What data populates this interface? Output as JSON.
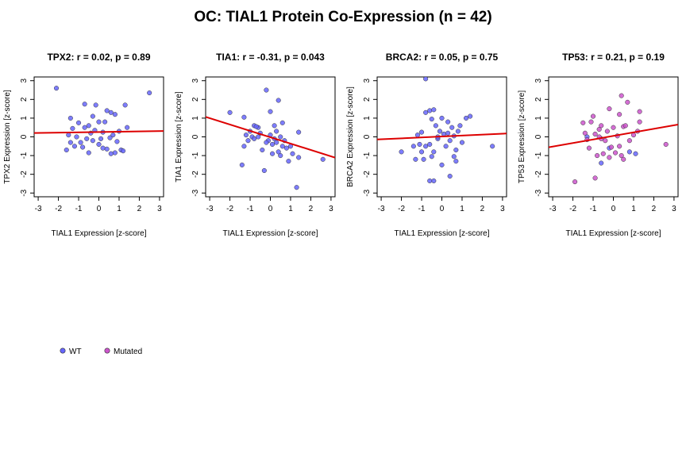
{
  "title": "OC: TIAL1 Protein Co-Expression (n = 42)",
  "colors": {
    "wt": "#6666ff",
    "mutated": "#cc55cc",
    "fit_line": "#dd0000",
    "axis": "#000000"
  },
  "legend": {
    "placement": "bottom-left",
    "items": [
      {
        "label": "WT",
        "color": "#6666ff"
      },
      {
        "label": "Mutated",
        "color": "#cc55cc"
      }
    ]
  },
  "chart_data": [
    {
      "type": "scatter",
      "title": "TPX2: r = 0.02, p = 0.89",
      "xlabel": "TIAL1 Expression [z-score]",
      "ylabel": "TPX2 Expression [z-score]",
      "xlim": [
        -3.2,
        3.2
      ],
      "ylim": [
        -3.2,
        3.2
      ],
      "xticks": [
        "-3",
        "-2",
        "-1",
        "0",
        "1",
        "2",
        "3"
      ],
      "yticks": [
        "-3",
        "-2",
        "-1",
        "0",
        "1",
        "2",
        "3"
      ],
      "fit": {
        "intercept": 0.26,
        "slope": 0.016
      },
      "series": [
        {
          "name": "WT",
          "points": [
            [
              -2.1,
              2.6
            ],
            [
              2.5,
              2.35
            ],
            [
              -0.7,
              1.75
            ],
            [
              -0.15,
              1.7
            ],
            [
              1.3,
              1.7
            ],
            [
              -1.4,
              1.0
            ],
            [
              0.4,
              1.4
            ],
            [
              0.6,
              1.3
            ],
            [
              0.8,
              1.2
            ],
            [
              -0.3,
              1.1
            ],
            [
              -1.0,
              0.75
            ],
            [
              0.3,
              0.8
            ],
            [
              0.0,
              0.8
            ],
            [
              -0.5,
              0.6
            ],
            [
              -0.7,
              0.5
            ],
            [
              -1.3,
              0.45
            ],
            [
              1.4,
              0.5
            ],
            [
              1.0,
              0.3
            ],
            [
              0.7,
              0.1
            ],
            [
              -0.2,
              0.35
            ],
            [
              0.2,
              0.25
            ],
            [
              -0.4,
              0.2
            ],
            [
              -1.5,
              0.1
            ],
            [
              -1.1,
              0.0
            ],
            [
              0.55,
              -0.05
            ],
            [
              -0.6,
              -0.1
            ],
            [
              -0.3,
              -0.2
            ],
            [
              0.1,
              -0.1
            ],
            [
              -1.4,
              -0.3
            ],
            [
              0.9,
              -0.25
            ],
            [
              -1.6,
              -0.7
            ],
            [
              -1.2,
              -0.5
            ],
            [
              -0.8,
              -0.55
            ],
            [
              0.2,
              -0.6
            ],
            [
              0.4,
              -0.65
            ],
            [
              0.6,
              -0.9
            ],
            [
              0.8,
              -0.85
            ],
            [
              1.1,
              -0.7
            ],
            [
              1.2,
              -0.75
            ],
            [
              -0.5,
              -0.85
            ],
            [
              -0.9,
              -0.3
            ],
            [
              0.0,
              -0.4
            ]
          ]
        }
      ]
    },
    {
      "type": "scatter",
      "title": "TIA1: r = -0.31, p = 0.043",
      "xlabel": "TIAL1 Expression [z-score]",
      "ylabel": "TIA1 Expression [z-score]",
      "xlim": [
        -3.2,
        3.2
      ],
      "ylim": [
        -3.2,
        3.2
      ],
      "xticks": [
        "-3",
        "-2",
        "-1",
        "0",
        "1",
        "2",
        "3"
      ],
      "yticks": [
        "-3",
        "-2",
        "-1",
        "0",
        "1",
        "2",
        "3"
      ],
      "fit": {
        "intercept": -0.02,
        "slope": -0.34
      },
      "series": [
        {
          "name": "WT",
          "points": [
            [
              -0.2,
              2.5
            ],
            [
              0.4,
              1.95
            ],
            [
              0.0,
              1.35
            ],
            [
              -2.0,
              1.3
            ],
            [
              -1.3,
              1.05
            ],
            [
              -0.8,
              0.6
            ],
            [
              -0.6,
              0.5
            ],
            [
              -0.7,
              0.55
            ],
            [
              0.2,
              0.6
            ],
            [
              0.6,
              0.75
            ],
            [
              -1.0,
              0.3
            ],
            [
              -1.2,
              0.1
            ],
            [
              -0.9,
              0.0
            ],
            [
              -0.5,
              0.2
            ],
            [
              0.0,
              0.1
            ],
            [
              0.2,
              -0.1
            ],
            [
              0.5,
              0.0
            ],
            [
              1.4,
              0.25
            ],
            [
              -0.1,
              -0.2
            ],
            [
              0.3,
              -0.3
            ],
            [
              0.7,
              -0.2
            ],
            [
              1.0,
              -0.5
            ],
            [
              0.8,
              -0.6
            ],
            [
              -1.3,
              -0.5
            ],
            [
              -0.4,
              -0.7
            ],
            [
              0.1,
              -0.4
            ],
            [
              0.5,
              -1.0
            ],
            [
              1.1,
              -0.9
            ],
            [
              1.4,
              -1.1
            ],
            [
              2.6,
              -1.2
            ],
            [
              -0.3,
              -1.8
            ],
            [
              -1.4,
              -1.5
            ],
            [
              1.3,
              -2.7
            ],
            [
              -0.8,
              -0.1
            ],
            [
              -0.2,
              -0.3
            ],
            [
              0.4,
              -0.8
            ],
            [
              0.9,
              -1.3
            ],
            [
              -0.6,
              0.0
            ],
            [
              0.3,
              0.3
            ],
            [
              -1.1,
              -0.2
            ],
            [
              0.6,
              -0.5
            ],
            [
              0.1,
              -0.9
            ]
          ]
        }
      ]
    },
    {
      "type": "scatter",
      "title": "BRCA2: r = 0.05, p = 0.75",
      "xlabel": "TIAL1 Expression [z-score]",
      "ylabel": "BRCA2 Expression [z-score]",
      "xlim": [
        -3.2,
        3.2
      ],
      "ylim": [
        -3.2,
        3.2
      ],
      "xticks": [
        "-3",
        "-2",
        "-1",
        "0",
        "1",
        "2",
        "3"
      ],
      "yticks": [
        "-3",
        "-2",
        "-1",
        "0",
        "1",
        "2",
        "3"
      ],
      "fit": {
        "intercept": 0.02,
        "slope": 0.05
      },
      "series": [
        {
          "name": "WT",
          "points": [
            [
              -0.8,
              3.1
            ],
            [
              -0.6,
              1.4
            ],
            [
              -0.4,
              1.45
            ],
            [
              -0.8,
              1.3
            ],
            [
              1.4,
              1.1
            ],
            [
              1.2,
              1.0
            ],
            [
              -0.5,
              0.95
            ],
            [
              0.0,
              1.0
            ],
            [
              0.3,
              0.8
            ],
            [
              -0.3,
              0.6
            ],
            [
              0.5,
              0.5
            ],
            [
              -0.1,
              0.3
            ],
            [
              -1.0,
              0.25
            ],
            [
              -1.2,
              0.1
            ],
            [
              0.1,
              0.15
            ],
            [
              0.3,
              0.2
            ],
            [
              0.6,
              0.05
            ],
            [
              0.8,
              0.3
            ],
            [
              -0.2,
              -0.1
            ],
            [
              0.4,
              -0.2
            ],
            [
              1.0,
              -0.3
            ],
            [
              -0.6,
              -0.4
            ],
            [
              -1.4,
              -0.5
            ],
            [
              -1.1,
              -0.4
            ],
            [
              -0.8,
              -0.5
            ],
            [
              2.5,
              -0.5
            ],
            [
              0.7,
              -0.7
            ],
            [
              -0.4,
              -0.8
            ],
            [
              -1.3,
              -1.2
            ],
            [
              -0.5,
              -1.05
            ],
            [
              -0.9,
              -1.2
            ],
            [
              0.6,
              -1.05
            ],
            [
              0.7,
              -1.3
            ],
            [
              0.4,
              -2.1
            ],
            [
              -0.4,
              -2.35
            ],
            [
              -0.6,
              -2.35
            ],
            [
              0.2,
              -0.5
            ],
            [
              -0.2,
              0.0
            ],
            [
              0.9,
              0.6
            ],
            [
              -1.0,
              -0.8
            ],
            [
              0.0,
              -1.5
            ],
            [
              -2.0,
              -0.8
            ]
          ]
        }
      ]
    },
    {
      "type": "scatter",
      "title": "TP53: r = 0.21, p = 0.19",
      "xlabel": "TIAL1 Expression [z-score]",
      "ylabel": "TP53 Expression [z-score]",
      "xlim": [
        -3.2,
        3.2
      ],
      "ylim": [
        -3.2,
        3.2
      ],
      "xticks": [
        "-3",
        "-2",
        "-1",
        "0",
        "1",
        "2",
        "3"
      ],
      "yticks": [
        "-3",
        "-2",
        "-1",
        "0",
        "1",
        "2",
        "3"
      ],
      "fit": {
        "intercept": 0.05,
        "slope": 0.19
      },
      "series": [
        {
          "name": "WT",
          "points": [
            [
              -1.3,
              0.0
            ],
            [
              1.1,
              -0.9
            ],
            [
              -0.6,
              -1.4
            ],
            [
              0.8,
              -0.8
            ],
            [
              -0.2,
              -0.6
            ]
          ]
        },
        {
          "name": "Mutated",
          "points": [
            [
              0.4,
              2.2
            ],
            [
              0.7,
              1.85
            ],
            [
              -0.2,
              1.5
            ],
            [
              0.3,
              1.2
            ],
            [
              1.3,
              1.35
            ],
            [
              -1.0,
              1.1
            ],
            [
              -1.5,
              0.75
            ],
            [
              -1.1,
              0.8
            ],
            [
              -0.6,
              0.6
            ],
            [
              -0.7,
              0.4
            ],
            [
              0.0,
              0.5
            ],
            [
              0.5,
              0.55
            ],
            [
              0.6,
              0.6
            ],
            [
              1.2,
              0.3
            ],
            [
              -1.4,
              0.2
            ],
            [
              -0.9,
              0.15
            ],
            [
              -0.3,
              0.3
            ],
            [
              0.2,
              0.05
            ],
            [
              1.0,
              0.1
            ],
            [
              -1.3,
              -0.15
            ],
            [
              -0.6,
              -0.1
            ],
            [
              -0.4,
              -0.2
            ],
            [
              0.3,
              -0.5
            ],
            [
              -0.1,
              -0.55
            ],
            [
              2.6,
              -0.4
            ],
            [
              -0.8,
              -1.0
            ],
            [
              -0.5,
              -0.9
            ],
            [
              0.1,
              -0.85
            ],
            [
              0.4,
              -1.0
            ],
            [
              -0.9,
              -2.2
            ],
            [
              -1.9,
              -2.4
            ],
            [
              -1.2,
              -0.6
            ],
            [
              0.8,
              -0.2
            ],
            [
              -0.2,
              -1.1
            ],
            [
              0.5,
              -1.2
            ],
            [
              1.3,
              0.8
            ],
            [
              -0.7,
              0.0
            ]
          ]
        }
      ]
    }
  ]
}
